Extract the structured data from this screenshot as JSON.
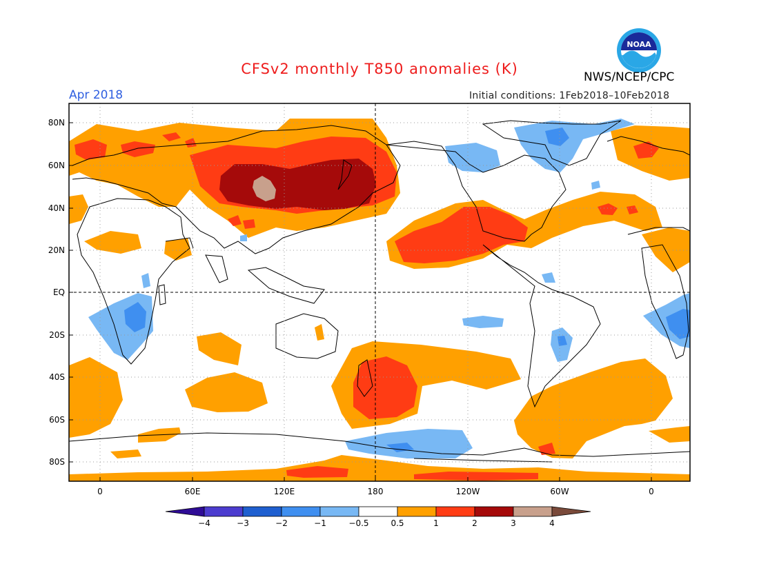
{
  "header": {
    "title": "CFSv2 monthly T850 anomalies (K)",
    "period": "Apr 2018",
    "agency": "NWS/NCEP/CPC",
    "initial_conditions": "Initial conditions: 1Feb2018–10Feb2018",
    "logo_text": "NOAA",
    "colors": {
      "title": "#ee1c1c",
      "period": "#2f5fe0"
    }
  },
  "map": {
    "lat_labels": [
      "80N",
      "60N",
      "40N",
      "20N",
      "EQ",
      "20S",
      "40S",
      "60S",
      "80S"
    ],
    "lon_labels": [
      "0",
      "60E",
      "120E",
      "180",
      "120W",
      "60W",
      "0"
    ]
  },
  "colorbar": {
    "labels": [
      "−4",
      "−3",
      "−2",
      "−1",
      "−0.5",
      "0.5",
      "1",
      "2",
      "3",
      "4"
    ],
    "colors": [
      "#2f0c96",
      "#4c3ccf",
      "#1f5fd0",
      "#3f8ff0",
      "#78b8f4",
      "#ffffff",
      "#ffa000",
      "#ff3c14",
      "#a50a0a",
      "#c8a08c",
      "#7a4a3a"
    ]
  }
}
